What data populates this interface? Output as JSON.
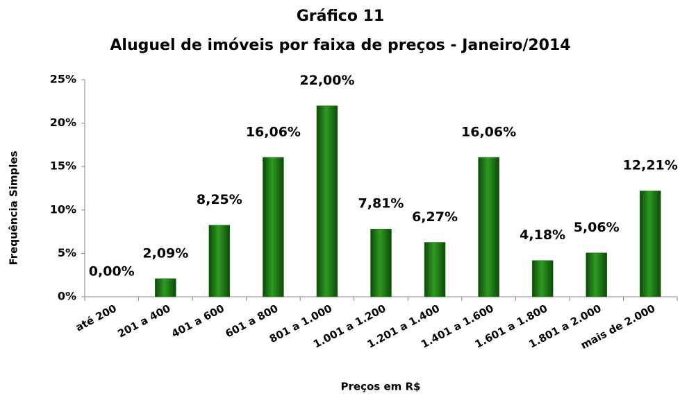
{
  "chart_data": {
    "type": "bar",
    "title": "Gráfico 11",
    "subtitle": "Aluguel de imóveis por faixa de preços  - Janeiro/2014",
    "x_label": "Preços em R$",
    "y_label": "Frequência Simples",
    "categories": [
      "até 200",
      "201 a 400",
      "401 a 600",
      "601 a 800",
      "801 a 1.000",
      "1.001 a 1.200",
      "1.201 a 1.400",
      "1.401 a 1.600",
      "1.601 a 1.800",
      "1.801 a 2.000",
      "mais de 2.000"
    ],
    "values": [
      0,
      2.09,
      8.25,
      16.06,
      22,
      7.81,
      6.27,
      16.06,
      4.18,
      5.06,
      12.21
    ],
    "value_labels": [
      "0,00%",
      "2,09%",
      "8,25%",
      "16,06%",
      "22,00%",
      "7,81%",
      "6,27%",
      "16,06%",
      "4,18%",
      "5,06%",
      "12,21%"
    ],
    "color": "#1e7a14",
    "ylim": [
      0,
      25
    ],
    "yticks": [
      {
        "value": 0,
        "label": "0%"
      },
      {
        "value": 5,
        "label": "5%"
      },
      {
        "value": 10,
        "label": "10%"
      },
      {
        "value": 15,
        "label": "15%"
      },
      {
        "value": 20,
        "label": "20%"
      },
      {
        "value": 25,
        "label": "25%"
      }
    ],
    "grid": false
  }
}
